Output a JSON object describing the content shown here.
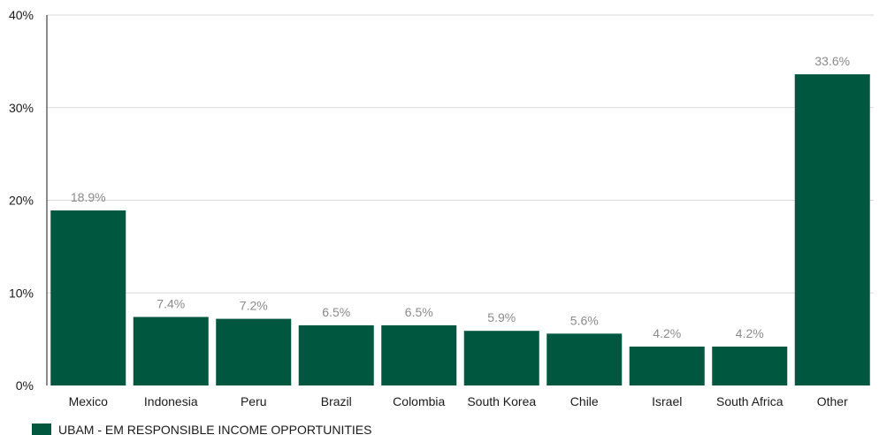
{
  "chart_data": {
    "type": "bar",
    "categories": [
      "Mexico",
      "Indonesia",
      "Peru",
      "Brazil",
      "Colombia",
      "South Korea",
      "Chile",
      "Israel",
      "South Africa",
      "Other"
    ],
    "series": [
      {
        "name": "UBAM - EM RESPONSIBLE INCOME OPPORTUNITIES",
        "values": [
          18.9,
          7.4,
          7.2,
          6.5,
          6.5,
          5.9,
          5.6,
          4.2,
          4.2,
          33.6
        ],
        "labels": [
          "18.9%",
          "7.4%",
          "7.2%",
          "6.5%",
          "6.5%",
          "5.9%",
          "5.6%",
          "4.2%",
          "4.2%",
          "33.6%"
        ],
        "color": "#00573f"
      }
    ],
    "y_ticks": [
      "0%",
      "10%",
      "20%",
      "30%",
      "40%"
    ],
    "y_tick_values": [
      0,
      10,
      20,
      30,
      40
    ],
    "ylim": [
      0,
      40
    ],
    "grid": true,
    "legend_position": "bottom-left"
  }
}
